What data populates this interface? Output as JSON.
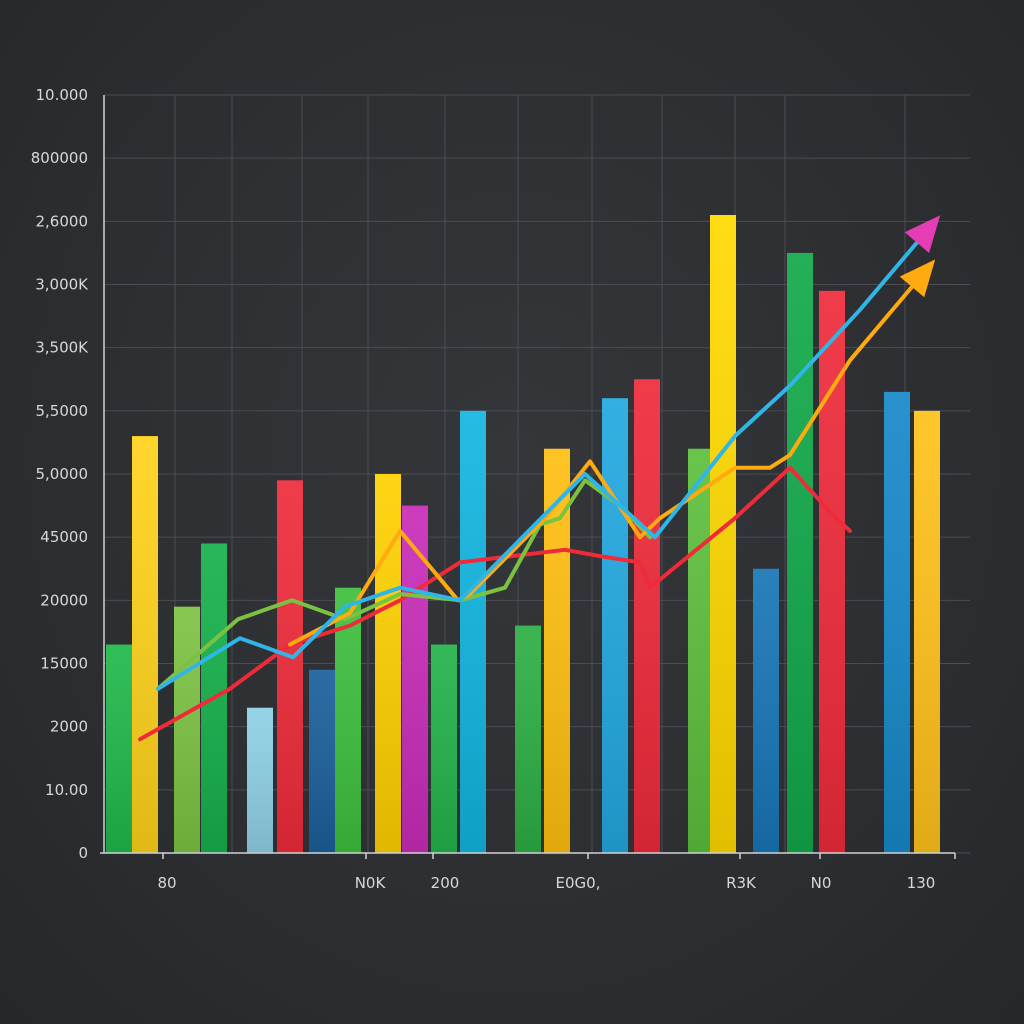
{
  "chart_data": {
    "type": "bar",
    "title": "",
    "xlabel": "",
    "ylabel": "",
    "grid": true,
    "legend": "none",
    "y_tick_labels": [
      "10.000",
      "800000",
      "2,6000",
      "3,000K",
      "3,500K",
      "5,5000",
      "5,0000",
      "45000",
      "20000",
      "15000",
      "2000",
      "10.00",
      "0"
    ],
    "x_tick_labels": [
      "80",
      "N0K",
      "200",
      "E0G0,",
      "R3K",
      "N0",
      "130"
    ],
    "value_scale_note": "",
    "ylim": [
      0,
      12
    ],
    "bars": [
      {
        "value": 3.3,
        "color": "#1fb84a"
      },
      {
        "value": 6.6,
        "color": "#ffd21a"
      },
      {
        "value": 3.9,
        "color": "#7cc242"
      },
      {
        "value": 4.9,
        "color": "#16b04c"
      },
      {
        "value": 2.3,
        "color": "#8ed0e4"
      },
      {
        "value": 5.9,
        "color": "#ef2b3a"
      },
      {
        "value": 2.9,
        "color": "#1a5f9a"
      },
      {
        "value": 4.2,
        "color": "#3dbf3d"
      },
      {
        "value": 6.0,
        "color": "#ffd000"
      },
      {
        "value": 5.5,
        "color": "#c82cb8"
      },
      {
        "value": 3.3,
        "color": "#22b24a"
      },
      {
        "value": 7.0,
        "color": "#12b5e0"
      },
      {
        "value": 3.6,
        "color": "#2cae44"
      },
      {
        "value": 6.4,
        "color": "#ffbf10"
      },
      {
        "value": 7.2,
        "color": "#22a8e0"
      },
      {
        "value": 7.5,
        "color": "#ef2a3a"
      },
      {
        "value": 6.4,
        "color": "#5cbf3c"
      },
      {
        "value": 10.1,
        "color": "#ffd900"
      },
      {
        "value": 4.5,
        "color": "#1775b5"
      },
      {
        "value": 9.5,
        "color": "#12a84a"
      },
      {
        "value": 8.9,
        "color": "#ef2b3a"
      },
      {
        "value": 7.3,
        "color": "#1688c9"
      },
      {
        "value": 7.0,
        "color": "#ffc11a"
      }
    ],
    "series": [
      {
        "color": "#ef2b3a",
        "arrow": false,
        "values": [
          1.8,
          2.6,
          3.3,
          3.6,
          4.0,
          4.6,
          4.8,
          4.7,
          4.6,
          4.2,
          5.3,
          6.1,
          5.4,
          5.1
        ]
      },
      {
        "color": "#7cc242",
        "arrow": false,
        "values": [
          2.6,
          3.7,
          4.0,
          3.7,
          4.1,
          4.0,
          4.2,
          5.2,
          5.3,
          5.9,
          5.5,
          5.0
        ]
      },
      {
        "color": "#ffaa10",
        "arrow": true,
        "values": [
          3.3,
          3.8,
          5.1,
          4.0,
          4.1,
          5.3,
          6.2,
          5.0,
          5.3,
          6.1,
          6.1,
          6.3,
          7.8,
          9.3
        ]
      },
      {
        "color": "#2fb6e6",
        "arrow": true,
        "arrow_color": "#e43db5",
        "values": [
          2.6,
          3.4,
          3.1,
          3.9,
          4.2,
          4.0,
          6.0,
          5.0,
          6.6,
          7.4,
          8.6,
          10.0
        ]
      }
    ]
  }
}
